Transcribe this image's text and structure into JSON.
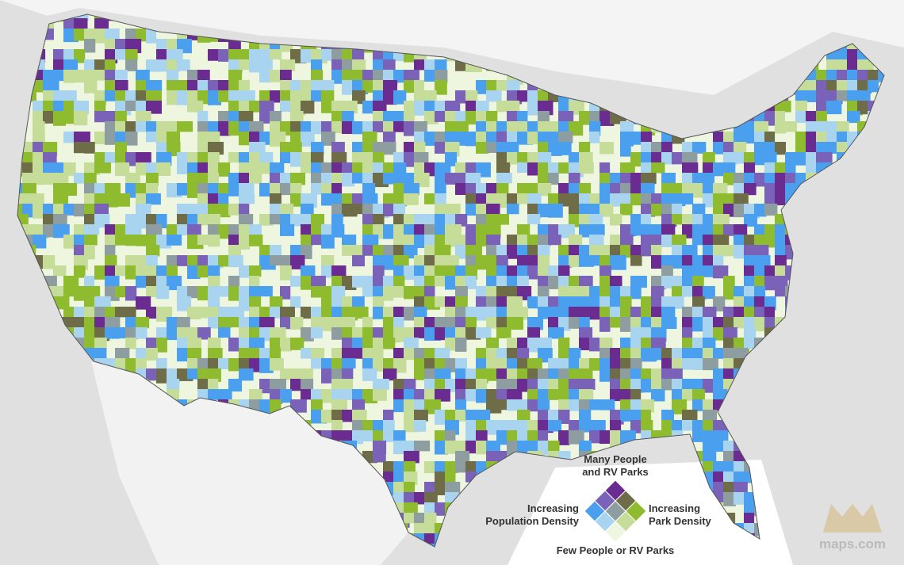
{
  "legend": {
    "top": "Many People\nand RV Parks",
    "left": "Increasing\nPopulation Density",
    "right": "Increasing\nPark Density",
    "bottom": "Few People or RV Parks",
    "grid": [
      [
        "#eef6e0",
        "#c6dd9a",
        "#8fbb2e"
      ],
      [
        "#a8d4f0",
        "#8e9ea0",
        "#6e6d48"
      ],
      [
        "#4aa0ee",
        "#7a62b8",
        "#6b2c91"
      ]
    ]
  },
  "logo": {
    "text": "maps.com"
  }
}
